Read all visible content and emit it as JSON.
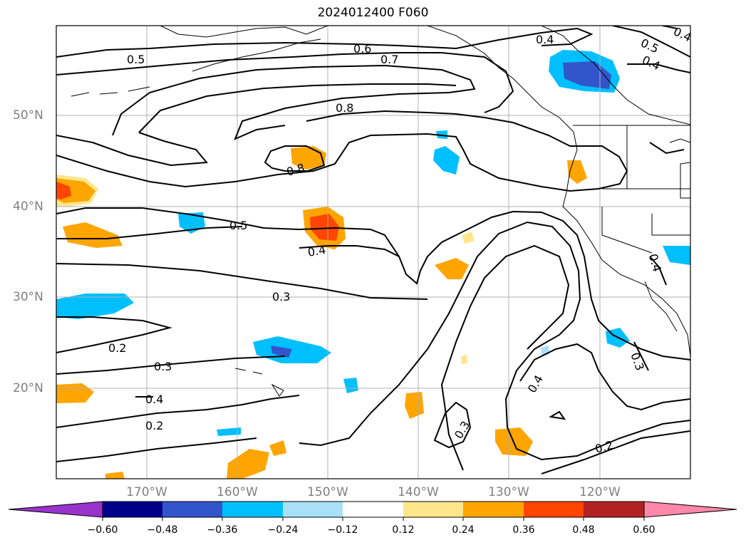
{
  "title": "2024012400 F060",
  "lat_labels": [
    "50°N",
    "40°N",
    "30°N",
    "20°N"
  ],
  "lon_labels": [
    "170°W",
    "160°W",
    "150°W",
    "140°W",
    "130°W",
    "120°W"
  ],
  "colorbar": {
    "labels": [
      "−0.60",
      "−0.48",
      "−0.36",
      "−0.24",
      "−0.12",
      "0.12",
      "0.24",
      "0.36",
      "0.48",
      "0.60"
    ],
    "colors": [
      "#9933cc",
      "#00008b",
      "#3355cc",
      "#00bfff",
      "#a8e0f8",
      "#ffffff",
      "#ffe68c",
      "#ffa500",
      "#ff4500",
      "#b22222",
      "#ff88aa"
    ]
  },
  "contour_labels": [
    "0.5",
    "0.6",
    "0.7",
    "0.4",
    "0.5",
    "0.4",
    "0.8",
    "0.8",
    "0.5",
    "0.4",
    "0.3",
    "0.2",
    "0.3",
    "0.4",
    "0.2",
    "0.4",
    "0.3",
    "0.4",
    "0.3",
    "0.2",
    "0.4"
  ]
}
